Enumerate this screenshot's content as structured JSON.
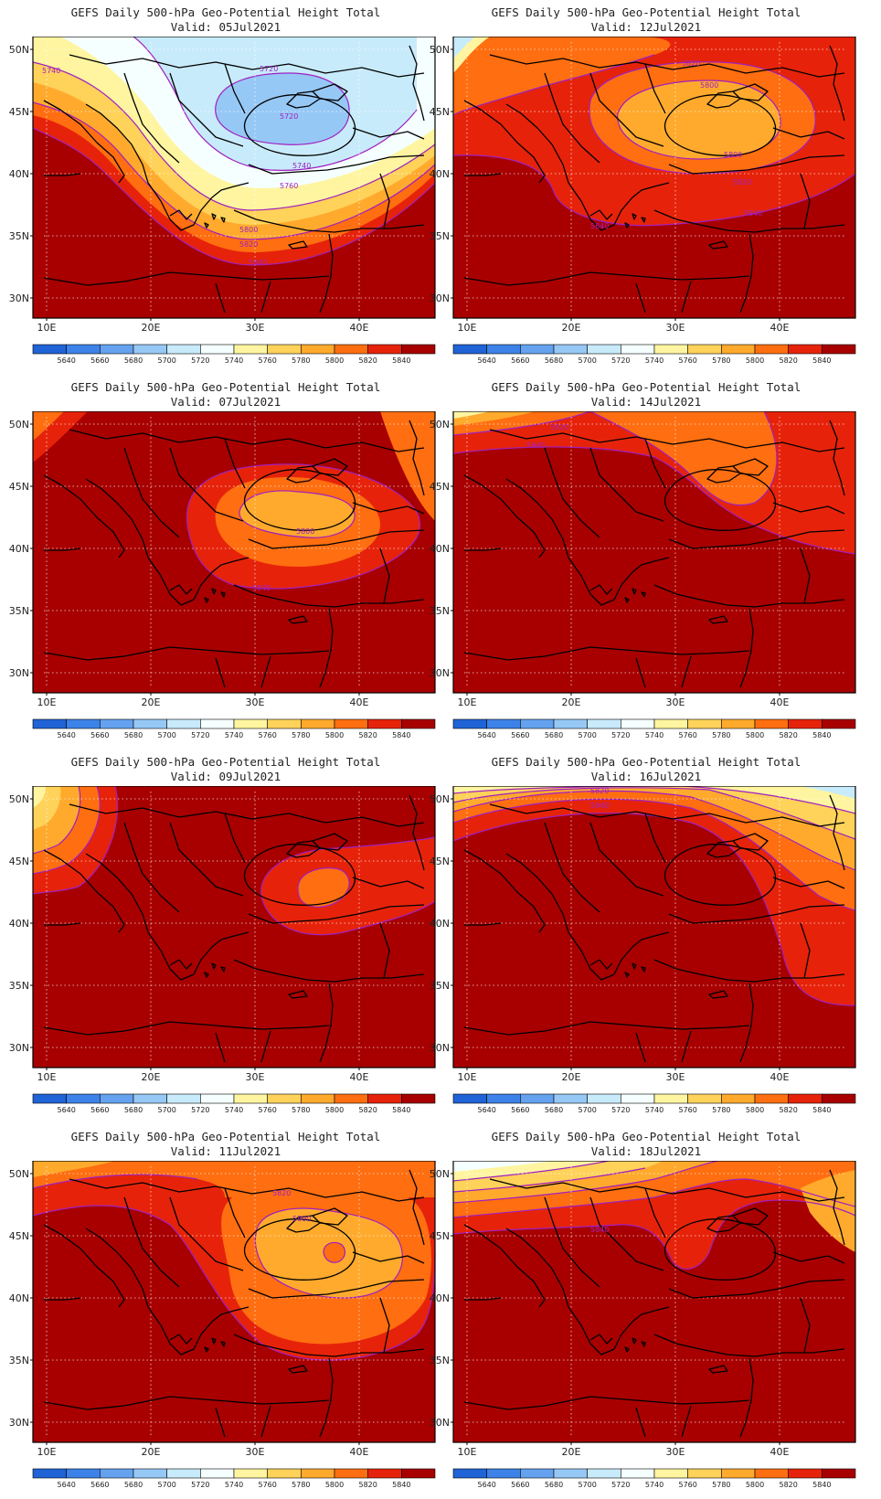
{
  "title": "GEFS Daily 500-hPa Geo-Potential Height Total",
  "lon_labels": [
    "10E",
    "20E",
    "30E",
    "40E"
  ],
  "lat_labels": [
    "50N",
    "45N",
    "40N",
    "35N",
    "30N"
  ],
  "colorbar": {
    "levels": [
      "5640",
      "5660",
      "5680",
      "5700",
      "5720",
      "5740",
      "5760",
      "5780",
      "5800",
      "5820",
      "5840"
    ],
    "colors": [
      "#1f63d6",
      "#3c82e8",
      "#64a2f0",
      "#96c8f6",
      "#c8ebfb",
      "#f5ffff",
      "#fff5a0",
      "#ffd25a",
      "#ffaa2d",
      "#ff6e10",
      "#e6230a",
      "#a80000"
    ]
  },
  "panels": [
    {
      "valid": "Valid: 05Jul2021",
      "contour_labels": [
        "5740",
        "5720",
        "5720",
        "5740",
        "5760",
        "5800",
        "5820",
        "5840"
      ]
    },
    {
      "valid": "Valid: 12Jul2021",
      "contour_labels": [
        "5820",
        "5800",
        "5800",
        "5820",
        "5840",
        "5840"
      ]
    },
    {
      "valid": "Valid: 07Jul2021",
      "contour_labels": [
        "5800",
        "5840"
      ]
    },
    {
      "valid": "Valid: 14Jul2021",
      "contour_labels": [
        "5820",
        "5840"
      ]
    },
    {
      "valid": "Valid: 09Jul2021",
      "contour_labels": []
    },
    {
      "valid": "Valid: 16Jul2021",
      "contour_labels": [
        "5820",
        "5840"
      ]
    },
    {
      "valid": "Valid: 11Jul2021",
      "contour_labels": [
        "5820",
        "5800"
      ]
    },
    {
      "valid": "Valid: 18Jul2021",
      "contour_labels": [
        "5840"
      ]
    }
  ]
}
